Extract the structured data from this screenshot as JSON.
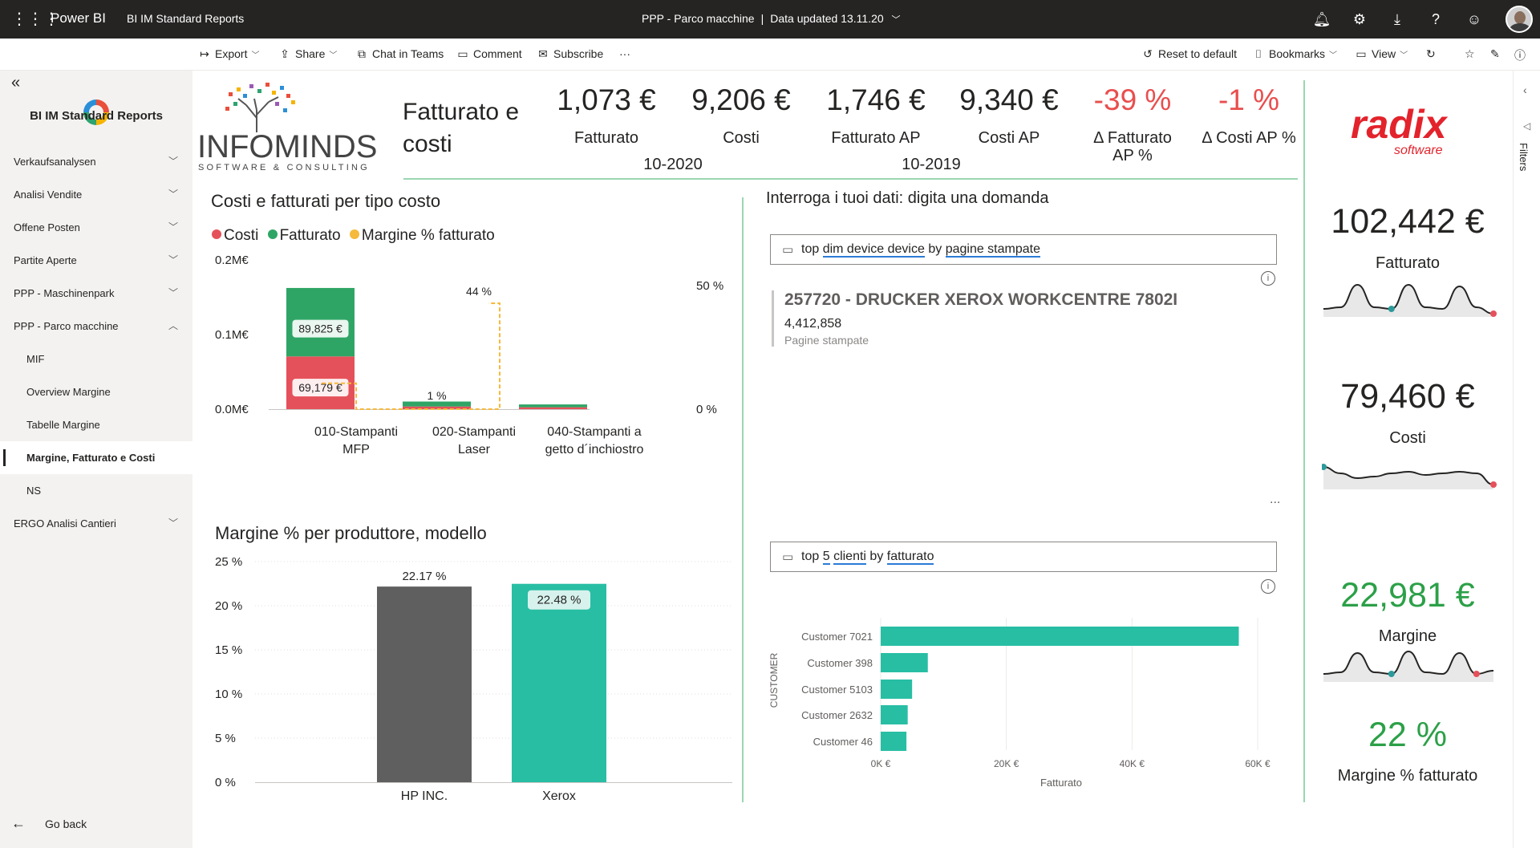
{
  "topbar": {
    "app": "Power BI",
    "workspace": "BI IM Standard Reports",
    "report": "PPP - Parco macchine",
    "separator": "|",
    "updated": "Data updated 13.11.20",
    "icons": [
      "waffle-icon",
      "bell-icon",
      "gear-icon",
      "download-icon",
      "help-icon",
      "smiley-icon"
    ]
  },
  "toolbar": {
    "export": "Export",
    "share": "Share",
    "chat": "Chat in Teams",
    "comment": "Comment",
    "subscribe": "Subscribe",
    "more": "···",
    "reset": "Reset to default",
    "bookmarks": "Bookmarks",
    "view": "View"
  },
  "sidebar": {
    "title": "BI IM Standard Reports",
    "items": [
      {
        "label": "Verkaufsanalysen",
        "chev": "﹀"
      },
      {
        "label": "Analisi Vendite",
        "chev": "﹀"
      },
      {
        "label": "Offene Posten",
        "chev": "﹀"
      },
      {
        "label": "Partite Aperte",
        "chev": "﹀"
      },
      {
        "label": "PPP - Maschinenpark",
        "chev": "﹀"
      },
      {
        "label": "PPP - Parco macchine",
        "chev": "︿"
      },
      {
        "label": "MIF"
      },
      {
        "label": "Overview Margine"
      },
      {
        "label": "Tabelle Margine"
      },
      {
        "label": "Margine, Fatturato e Costi"
      },
      {
        "label": "NS"
      },
      {
        "label": "ERGO Analisi Cantieri",
        "chev": "﹀"
      }
    ],
    "go_back": "Go back"
  },
  "header": {
    "logo_main": "INFOMINDS",
    "logo_sub": "SOFTWARE & CONSULTING",
    "title_line1": "Fatturato e",
    "title_line2": "costi",
    "kpis": [
      {
        "value": "1,073 €",
        "label": "Fatturato"
      },
      {
        "value": "9,206 €",
        "label": "Costi"
      },
      {
        "value": "1,746 €",
        "label": "Fatturato AP"
      },
      {
        "value": "9,340 €",
        "label": "Costi AP"
      },
      {
        "value": "-39 %",
        "label1": "Δ Fatturato",
        "label2": "AP %"
      },
      {
        "value": "-1 %",
        "label": "Δ Costi AP %"
      }
    ],
    "period_current": "10-2020",
    "period_previous": "10-2019"
  },
  "right_panel": {
    "logo_main": "radix",
    "logo_sub": "software",
    "cards": [
      {
        "value": "102,442 €",
        "label": "Fatturato"
      },
      {
        "value": "79,460 €",
        "label": "Costi"
      },
      {
        "value": "22,981 €",
        "label": "Margine"
      },
      {
        "value": "22 %",
        "label": "Margine % fatturato"
      }
    ]
  },
  "colors": {
    "costi": "#e5515a",
    "fatturato": "#2fa565",
    "margine": "#f5b93c",
    "teal": "#28bea4",
    "grey_bar": "#5f5f5f",
    "accent_line": "#9bd6b2",
    "negative": "#e94e4e",
    "positive": "#2ca048"
  },
  "charts": {
    "costi_fatturati": {
      "title": "Costi e fatturati per tipo costo",
      "legend": [
        "Costi",
        "Fatturato",
        "Margine % fatturato"
      ],
      "y_ticks": [
        "0.2M€",
        "0.1M€",
        "0.0M€"
      ],
      "y2_ticks": [
        "50 %",
        "0 %"
      ],
      "labels": {
        "hp_cost": "69,179 €",
        "hp_rev": "89,825 €",
        "m1": "44 %",
        "m2": "1 %"
      }
    },
    "margine_modello": {
      "title": "Margine % per produttore, modello",
      "y_ticks": [
        "25 %",
        "20 %",
        "15 %",
        "10 %",
        "5 %",
        "0 %"
      ],
      "labels": [
        "22.17 %",
        "22.48 %"
      ]
    },
    "qna": {
      "title": "Interroga i tuoi dati: digita una domanda",
      "q1": {
        "w1": "top",
        "w2": "dim device device",
        "w3": "by",
        "w4": "pagine stampate"
      },
      "answer_title": "257720 - DRUCKER XEROX WORKCENTRE 7802I",
      "answer_value": "4,412,858",
      "answer_sub": "Pagine stampate",
      "more": "...",
      "q2": {
        "w1": "top",
        "w2": "5",
        "w3": "clienti",
        "w4": "by",
        "w5": "fatturato"
      },
      "x_ticks": [
        "0K €",
        "20K €",
        "40K €",
        "60K €"
      ]
    }
  },
  "chart_data": [
    {
      "type": "bar",
      "title": "Costi e fatturati per tipo costo",
      "categories": [
        "010-Stampanti MFP",
        "020-Stampanti Laser",
        "040-Stampanti a getto d´inchiostro"
      ],
      "series": [
        {
          "name": "Costi",
          "values": [
            69179,
            3500,
            2500
          ]
        },
        {
          "name": "Fatturato",
          "values": [
            89825,
            6500,
            3700
          ]
        },
        {
          "name": "Margine % fatturato",
          "values": [
            44,
            1,
            0
          ]
        }
      ],
      "ylim": [
        0,
        200000
      ],
      "y2lim": [
        0,
        60
      ],
      "legend": "top-left"
    },
    {
      "type": "bar",
      "title": "Margine % per produttore, modello",
      "categories": [
        "HP INC.",
        "Xerox"
      ],
      "values": [
        22.17,
        22.48
      ],
      "ylim": [
        0,
        25
      ]
    },
    {
      "type": "bar",
      "categories": [
        "Customer 7021",
        "Customer 398",
        "Customer 5103",
        "Customer 2632",
        "Customer 46"
      ],
      "values": [
        57000,
        7500,
        5000,
        4300,
        4100
      ],
      "xlabel": "Fatturato",
      "ylabel": "CUSTOMER",
      "xlim": [
        0,
        60000
      ]
    }
  ],
  "sparklines": {
    "fatturato": [
      40,
      38,
      10,
      38,
      40,
      10,
      38,
      40,
      12,
      38,
      46
    ],
    "costi": [
      22,
      30,
      36,
      34,
      30,
      28,
      32,
      30,
      28,
      30,
      44
    ],
    "margine": [
      40,
      38,
      14,
      38,
      40,
      12,
      38,
      40,
      14,
      40,
      36
    ]
  }
}
